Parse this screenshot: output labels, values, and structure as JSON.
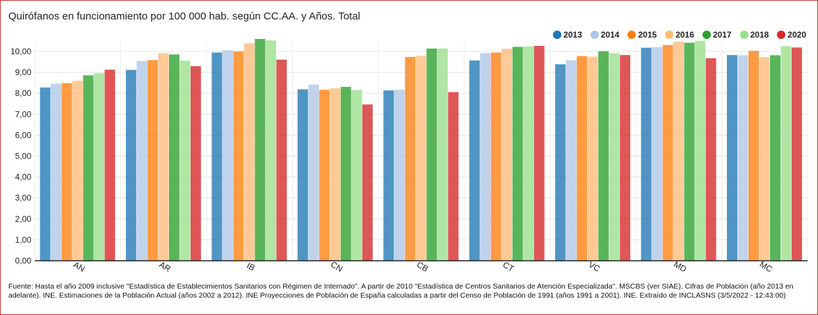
{
  "chart_data": {
    "type": "bar",
    "title": "Quirófanos en funcionamiento por 100 000 hab. según CC.AA. y Años. Total",
    "xlabel": "",
    "ylabel": "",
    "ylim": [
      0,
      10.5
    ],
    "yticks": [
      "0,00",
      "1,00",
      "2,00",
      "3,00",
      "4,00",
      "5,00",
      "6,00",
      "7,00",
      "8,00",
      "9,00",
      "10,00"
    ],
    "categories": [
      "AN",
      "AR",
      "IB",
      "CN",
      "CB",
      "CT",
      "VC",
      "MD",
      "MC"
    ],
    "series": [
      {
        "name": "2013",
        "color": "#1f77b4",
        "values": [
          8.28,
          9.12,
          9.95,
          8.19,
          8.14,
          9.57,
          9.39,
          10.18,
          9.83
        ]
      },
      {
        "name": "2014",
        "color": "#aec7e8",
        "values": [
          8.46,
          9.55,
          10.06,
          8.42,
          8.17,
          9.92,
          9.58,
          10.21,
          9.82
        ]
      },
      {
        "name": "2015",
        "color": "#ff7f0e",
        "values": [
          8.49,
          9.59,
          10.0,
          8.17,
          9.74,
          9.95,
          9.78,
          10.31,
          10.03
        ]
      },
      {
        "name": "2016",
        "color": "#ffbb78",
        "values": [
          8.6,
          9.92,
          10.39,
          8.24,
          9.79,
          10.13,
          9.75,
          10.47,
          9.73
        ]
      },
      {
        "name": "2017",
        "color": "#2ca02c",
        "values": [
          8.86,
          9.86,
          10.6,
          8.31,
          10.14,
          10.22,
          10.01,
          10.42,
          9.82
        ]
      },
      {
        "name": "2018",
        "color": "#98df8a",
        "values": [
          8.96,
          9.56,
          10.53,
          8.16,
          10.14,
          10.24,
          9.92,
          10.51,
          10.26
        ]
      },
      {
        "name": "2020",
        "color": "#d62728",
        "values": [
          9.13,
          9.3,
          9.61,
          7.47,
          8.06,
          10.27,
          9.83,
          9.68,
          10.19
        ]
      }
    ],
    "legend": "top-right",
    "grid": true
  },
  "source_text": "Fuente: Hasta el año 2009 inclusive \"Estadística de Establecimientos Sanitarios con Régimen de Internado\". A partir de 2010 \"Estadística de Centros Sanitarios de Atención Especializada\". MSCBS (ver SIAE). Cifras de Población (año 2013 en adelante). INE. Estimaciones de la Población Actual (años 2002 a 2012). INE Proyecciones de Población de España calculadas a partir del Censo de Población de 1991 (años 1991 a 2001). INE. Extraído de INCLASNS (3/5/2022 - 12:43:00)"
}
